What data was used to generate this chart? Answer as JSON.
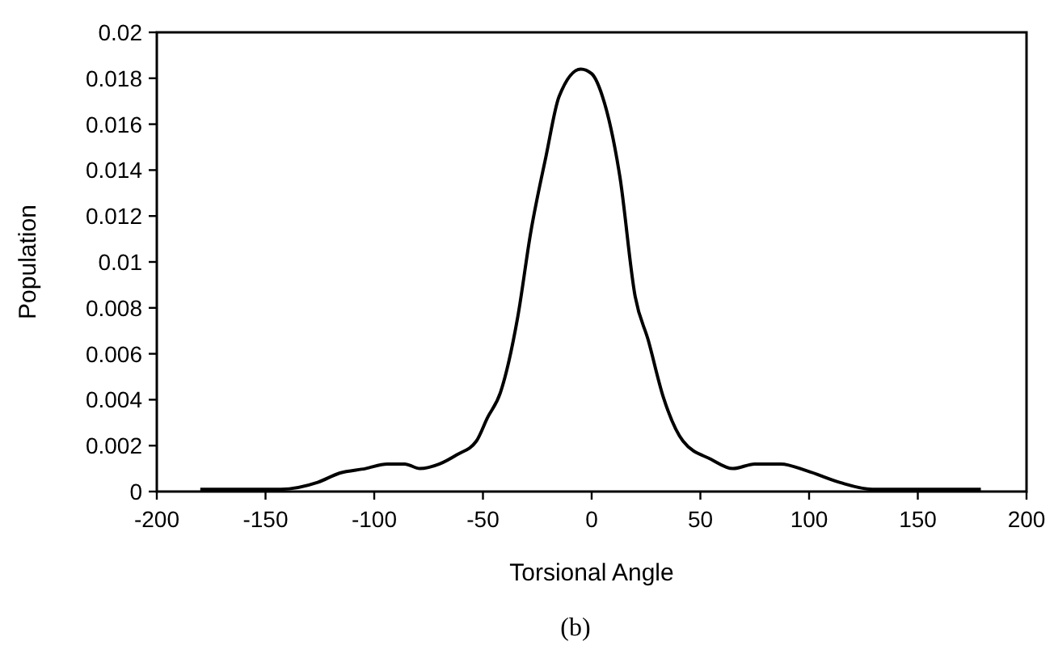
{
  "chart_data": {
    "type": "line",
    "xlabel": "Torsional Angle",
    "ylabel": "Population",
    "annotations": [
      "(b)"
    ],
    "x": [
      -180,
      -143,
      -126,
      -116,
      -104,
      -94,
      -86,
      -79,
      -70,
      -62,
      -53,
      -48,
      -42,
      -34,
      -28,
      -21,
      -15,
      -5,
      0,
      5,
      13,
      20,
      26,
      33,
      42,
      55,
      65,
      75,
      87,
      99,
      114,
      129,
      179
    ],
    "series": [
      {
        "color": "#000000",
        "values": [
          0.0001,
          0.0001,
          0.0004,
          0.0008,
          0.001,
          0.0012,
          0.0012,
          0.001,
          0.0012,
          0.0016,
          0.0022,
          0.0032,
          0.0043,
          0.0076,
          0.0113,
          0.0146,
          0.0172,
          0.0184,
          0.0182,
          0.0172,
          0.0137,
          0.0085,
          0.0066,
          0.0041,
          0.0022,
          0.0014,
          0.001,
          0.0012,
          0.0012,
          0.0009,
          0.0004,
          0.0001,
          0.0001
        ]
      }
    ],
    "xlim": [
      -200,
      200
    ],
    "xticks": [
      -200,
      -150,
      -100,
      -50,
      0,
      50,
      100,
      150,
      200
    ],
    "ylim": [
      0,
      0.02
    ],
    "yticks": [
      0,
      0.002,
      0.004,
      0.006,
      0.008,
      0.01,
      0.012,
      0.014,
      0.016,
      0.018,
      0.02
    ],
    "grid": false,
    "marker": "none",
    "line_style": "solid"
  }
}
